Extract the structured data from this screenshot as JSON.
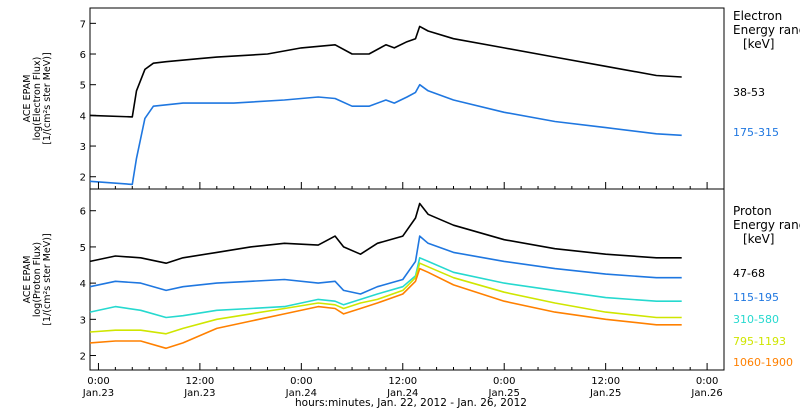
{
  "xlabel": "hours:minutes, Jan. 22, 2012 - Jan. 26, 2012",
  "x_ticks": [
    {
      "time": "0:00",
      "date": "Jan.23",
      "t": 0
    },
    {
      "time": "12:00",
      "date": "Jan.23",
      "t": 12
    },
    {
      "time": "0:00",
      "date": "Jan.24",
      "t": 24
    },
    {
      "time": "12:00",
      "date": "Jan.24",
      "t": 36
    },
    {
      "time": "0:00",
      "date": "Jan.25",
      "t": 48
    },
    {
      "time": "12:00",
      "date": "Jan.25",
      "t": 60
    },
    {
      "time": "0:00",
      "date": "Jan.26",
      "t": 72
    }
  ],
  "chart_data": [
    {
      "type": "line",
      "panel": "electron",
      "ylabel": [
        "ACE EPAM",
        "log(Electron Flux)",
        "[1/(cm²s ster MeV)]"
      ],
      "ylim": [
        1.6,
        7.5
      ],
      "yticks": [
        2,
        3,
        4,
        5,
        6,
        7
      ],
      "xlim": [
        -1,
        74
      ],
      "legend_title": [
        "Electron",
        "Energy ranges",
        "[keV]"
      ],
      "series": [
        {
          "name": "38-53",
          "color": "#000000",
          "points": [
            [
              -1,
              4.0
            ],
            [
              4,
              3.95
            ],
            [
              4.5,
              4.8
            ],
            [
              5.5,
              5.5
            ],
            [
              6.5,
              5.7
            ],
            [
              8,
              5.75
            ],
            [
              12,
              5.85
            ],
            [
              14,
              5.9
            ],
            [
              20,
              6.0
            ],
            [
              24,
              6.2
            ],
            [
              28,
              6.3
            ],
            [
              30,
              6.0
            ],
            [
              32,
              6.0
            ],
            [
              34,
              6.3
            ],
            [
              35,
              6.2
            ],
            [
              36.5,
              6.4
            ],
            [
              37.5,
              6.5
            ],
            [
              38,
              6.9
            ],
            [
              39,
              6.75
            ],
            [
              42,
              6.5
            ],
            [
              48,
              6.2
            ],
            [
              54,
              5.9
            ],
            [
              60,
              5.6
            ],
            [
              66,
              5.3
            ],
            [
              69,
              5.25
            ]
          ]
        },
        {
          "name": "175-315",
          "color": "#1f77e0",
          "points": [
            [
              -1,
              1.85
            ],
            [
              4,
              1.75
            ],
            [
              4.5,
              2.6
            ],
            [
              5.5,
              3.9
            ],
            [
              6.5,
              4.3
            ],
            [
              10,
              4.4
            ],
            [
              16,
              4.4
            ],
            [
              22,
              4.5
            ],
            [
              26,
              4.6
            ],
            [
              28,
              4.55
            ],
            [
              30,
              4.3
            ],
            [
              32,
              4.3
            ],
            [
              34,
              4.5
            ],
            [
              35,
              4.4
            ],
            [
              36.5,
              4.6
            ],
            [
              37.5,
              4.75
            ],
            [
              38,
              5.0
            ],
            [
              39,
              4.8
            ],
            [
              42,
              4.5
            ],
            [
              48,
              4.1
            ],
            [
              54,
              3.8
            ],
            [
              60,
              3.6
            ],
            [
              66,
              3.4
            ],
            [
              69,
              3.35
            ]
          ]
        }
      ]
    },
    {
      "type": "line",
      "panel": "proton",
      "ylabel": [
        "ACE EPAM",
        "log(Proton Flux)",
        "[1/(cm²s ster MeV)]"
      ],
      "ylim": [
        1.6,
        6.6
      ],
      "yticks": [
        2,
        3,
        4,
        5,
        6
      ],
      "xlim": [
        -1,
        74
      ],
      "legend_title": [
        "Proton",
        "Energy ranges",
        "[keV]"
      ],
      "series": [
        {
          "name": "47-68",
          "color": "#000000",
          "points": [
            [
              -1,
              4.6
            ],
            [
              2,
              4.75
            ],
            [
              5,
              4.7
            ],
            [
              8,
              4.55
            ],
            [
              10,
              4.7
            ],
            [
              14,
              4.85
            ],
            [
              18,
              5.0
            ],
            [
              22,
              5.1
            ],
            [
              26,
              5.05
            ],
            [
              28,
              5.3
            ],
            [
              29,
              5.0
            ],
            [
              31,
              4.8
            ],
            [
              33,
              5.1
            ],
            [
              36,
              5.3
            ],
            [
              37.5,
              5.8
            ],
            [
              38,
              6.2
            ],
            [
              39,
              5.9
            ],
            [
              42,
              5.6
            ],
            [
              48,
              5.2
            ],
            [
              54,
              4.95
            ],
            [
              60,
              4.8
            ],
            [
              66,
              4.7
            ],
            [
              69,
              4.7
            ]
          ]
        },
        {
          "name": "115-195",
          "color": "#1f77e0",
          "points": [
            [
              -1,
              3.9
            ],
            [
              2,
              4.05
            ],
            [
              5,
              4.0
            ],
            [
              8,
              3.8
            ],
            [
              10,
              3.9
            ],
            [
              14,
              4.0
            ],
            [
              18,
              4.05
            ],
            [
              22,
              4.1
            ],
            [
              26,
              4.0
            ],
            [
              28,
              4.05
            ],
            [
              29,
              3.8
            ],
            [
              31,
              3.7
            ],
            [
              33,
              3.9
            ],
            [
              36,
              4.1
            ],
            [
              37.5,
              4.6
            ],
            [
              38,
              5.3
            ],
            [
              39,
              5.1
            ],
            [
              42,
              4.85
            ],
            [
              48,
              4.6
            ],
            [
              54,
              4.4
            ],
            [
              60,
              4.25
            ],
            [
              66,
              4.15
            ],
            [
              69,
              4.15
            ]
          ]
        },
        {
          "name": "310-580",
          "color": "#26d9cf",
          "points": [
            [
              -1,
              3.2
            ],
            [
              2,
              3.35
            ],
            [
              5,
              3.25
            ],
            [
              8,
              3.05
            ],
            [
              10,
              3.1
            ],
            [
              14,
              3.25
            ],
            [
              18,
              3.3
            ],
            [
              22,
              3.35
            ],
            [
              26,
              3.55
            ],
            [
              28,
              3.5
            ],
            [
              29,
              3.4
            ],
            [
              31,
              3.55
            ],
            [
              33,
              3.7
            ],
            [
              36,
              3.9
            ],
            [
              37.5,
              4.2
            ],
            [
              38,
              4.7
            ],
            [
              39,
              4.6
            ],
            [
              42,
              4.3
            ],
            [
              48,
              4.0
            ],
            [
              54,
              3.8
            ],
            [
              60,
              3.6
            ],
            [
              66,
              3.5
            ],
            [
              69,
              3.5
            ]
          ]
        },
        {
          "name": "795-1193",
          "color": "#cfe600",
          "points": [
            [
              -1,
              2.65
            ],
            [
              2,
              2.7
            ],
            [
              5,
              2.7
            ],
            [
              8,
              2.6
            ],
            [
              10,
              2.75
            ],
            [
              14,
              3.0
            ],
            [
              18,
              3.15
            ],
            [
              22,
              3.3
            ],
            [
              26,
              3.45
            ],
            [
              28,
              3.4
            ],
            [
              29,
              3.3
            ],
            [
              31,
              3.45
            ],
            [
              33,
              3.55
            ],
            [
              36,
              3.8
            ],
            [
              37.5,
              4.15
            ],
            [
              38,
              4.55
            ],
            [
              39,
              4.45
            ],
            [
              42,
              4.15
            ],
            [
              48,
              3.75
            ],
            [
              54,
              3.45
            ],
            [
              60,
              3.2
            ],
            [
              66,
              3.05
            ],
            [
              69,
              3.05
            ]
          ]
        },
        {
          "name": "1060-1900",
          "color": "#ff8000",
          "points": [
            [
              -1,
              2.35
            ],
            [
              2,
              2.4
            ],
            [
              5,
              2.4
            ],
            [
              8,
              2.2
            ],
            [
              10,
              2.35
            ],
            [
              14,
              2.75
            ],
            [
              18,
              2.95
            ],
            [
              22,
              3.15
            ],
            [
              26,
              3.35
            ],
            [
              28,
              3.3
            ],
            [
              29,
              3.15
            ],
            [
              31,
              3.3
            ],
            [
              33,
              3.45
            ],
            [
              36,
              3.7
            ],
            [
              37.5,
              4.05
            ],
            [
              38,
              4.4
            ],
            [
              39,
              4.3
            ],
            [
              42,
              3.95
            ],
            [
              48,
              3.5
            ],
            [
              54,
              3.2
            ],
            [
              60,
              3.0
            ],
            [
              66,
              2.85
            ],
            [
              69,
              2.85
            ]
          ]
        }
      ]
    }
  ]
}
